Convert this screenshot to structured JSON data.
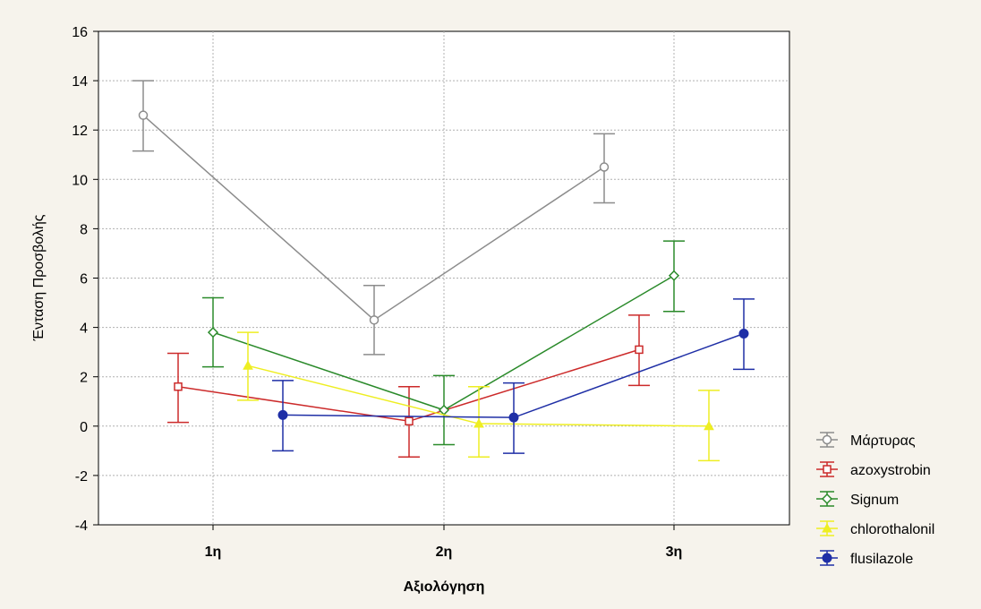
{
  "chart_data": {
    "type": "line",
    "xlabel": "Αξιολόγηση",
    "ylabel": "Ένταση Προσβολής",
    "categories": [
      "1η",
      "2η",
      "3η"
    ],
    "ylim": [
      -4,
      16
    ],
    "yticks": [
      -4,
      -2,
      0,
      2,
      4,
      6,
      8,
      10,
      12,
      14,
      16
    ],
    "grid": true,
    "legend_position": "right-bottom",
    "error_bars": true,
    "series": [
      {
        "name": "Μάρτυρας",
        "color": "#8c8c8c",
        "marker": "circle-open",
        "values": [
          12.6,
          4.3,
          10.5
        ],
        "lower": [
          11.15,
          2.9,
          9.05
        ],
        "upper": [
          14.0,
          5.7,
          11.85
        ]
      },
      {
        "name": "azoxystrobin",
        "color": "#cc2a2a",
        "marker": "square-open",
        "values": [
          1.6,
          0.2,
          3.1
        ],
        "lower": [
          0.15,
          -1.25,
          1.65
        ],
        "upper": [
          2.95,
          1.6,
          4.5
        ]
      },
      {
        "name": "Signum",
        "color": "#2a8a2a",
        "marker": "diamond-open",
        "values": [
          3.8,
          0.65,
          6.1
        ],
        "lower": [
          2.4,
          -0.75,
          4.65
        ],
        "upper": [
          5.2,
          2.05,
          7.5
        ]
      },
      {
        "name": "chlorothalonil",
        "color": "#eeee22",
        "marker": "triangle",
        "values": [
          2.45,
          0.1,
          0.0
        ],
        "lower": [
          1.05,
          -1.25,
          -1.4
        ],
        "upper": [
          3.8,
          1.6,
          1.45
        ]
      },
      {
        "name": "flusilazole",
        "color": "#1f2fa6",
        "marker": "circle-filled",
        "values": [
          0.45,
          0.35,
          3.75
        ],
        "lower": [
          -1.0,
          -1.1,
          2.3
        ],
        "upper": [
          1.85,
          1.75,
          5.15
        ]
      }
    ]
  }
}
